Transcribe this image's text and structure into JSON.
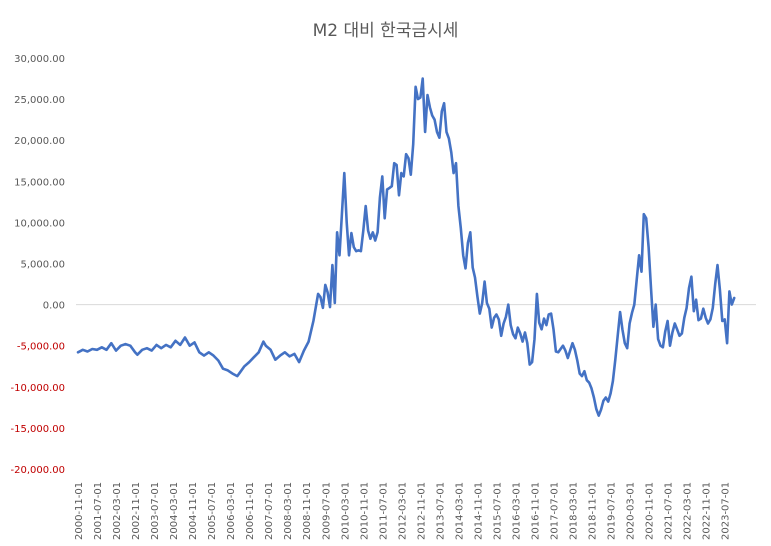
{
  "chart_data": {
    "type": "line",
    "title": "M2 대비 한국금시세",
    "xlabel": "",
    "ylabel": "",
    "ylim": [
      -20000,
      30000
    ],
    "y_ticks": [
      30000,
      25000,
      20000,
      15000,
      10000,
      5000,
      0,
      -5000,
      -10000,
      -15000,
      -20000
    ],
    "y_tick_labels": [
      "30,000.00",
      "25,000.00",
      "20,000.00",
      "15,000.00",
      "10,000.00",
      "5,000.00",
      "0.00",
      "-5,000.00",
      "-10,000.00",
      "-15,000.00",
      "-20,000.00"
    ],
    "negative_label_color": "#c00000",
    "positive_label_color": "#595959",
    "line_color": "#4472c4",
    "grid": false,
    "x_start": "2000-11",
    "x_tick_labels": [
      "2000-11-01",
      "2001-07-01",
      "2002-03-01",
      "2002-11-01",
      "2003-07-01",
      "2004-03-01",
      "2004-11-01",
      "2005-07-01",
      "2006-03-01",
      "2006-11-01",
      "2007-07-01",
      "2008-03-01",
      "2008-11-01",
      "2009-07-01",
      "2010-03-01",
      "2010-11-01",
      "2011-07-01",
      "2012-03-01",
      "2012-11-01",
      "2013-07-01",
      "2014-03-01",
      "2014-11-01",
      "2015-07-01",
      "2016-03-01",
      "2016-11-01",
      "2017-07-01",
      "2018-03-01",
      "2018-11-01",
      "2019-07-01",
      "2020-03-01",
      "2020-11-01",
      "2021-07-01",
      "2022-03-01",
      "2022-11-01",
      "2023-07-01"
    ],
    "series": [
      {
        "points": [
          [
            "2000-11",
            -5800
          ],
          [
            "2001-01",
            -5500
          ],
          [
            "2001-03",
            -5700
          ],
          [
            "2001-05",
            -5400
          ],
          [
            "2001-07",
            -5500
          ],
          [
            "2001-09",
            -5200
          ],
          [
            "2001-11",
            -5500
          ],
          [
            "2002-01",
            -4700
          ],
          [
            "2002-03",
            -5600
          ],
          [
            "2002-05",
            -5000
          ],
          [
            "2002-07",
            -4800
          ],
          [
            "2002-09",
            -5000
          ],
          [
            "2002-11",
            -5800
          ],
          [
            "2002-12",
            -6100
          ],
          [
            "2003-02",
            -5500
          ],
          [
            "2003-04",
            -5300
          ],
          [
            "2003-06",
            -5600
          ],
          [
            "2003-08",
            -4900
          ],
          [
            "2003-10",
            -5300
          ],
          [
            "2003-12",
            -4900
          ],
          [
            "2004-02",
            -5200
          ],
          [
            "2004-04",
            -4400
          ],
          [
            "2004-06",
            -4900
          ],
          [
            "2004-08",
            -4000
          ],
          [
            "2004-10",
            -5000
          ],
          [
            "2004-12",
            -4600
          ],
          [
            "2005-02",
            -5800
          ],
          [
            "2005-04",
            -6200
          ],
          [
            "2005-06",
            -5800
          ],
          [
            "2005-08",
            -6200
          ],
          [
            "2005-10",
            -6800
          ],
          [
            "2005-12",
            -7800
          ],
          [
            "2006-02",
            -8000
          ],
          [
            "2006-04",
            -8400
          ],
          [
            "2006-06",
            -8700
          ],
          [
            "2006-07",
            -8300
          ],
          [
            "2006-09",
            -7500
          ],
          [
            "2006-11",
            -7000
          ],
          [
            "2007-01",
            -6400
          ],
          [
            "2007-03",
            -5800
          ],
          [
            "2007-05",
            -4500
          ],
          [
            "2007-06",
            -5000
          ],
          [
            "2007-08",
            -5500
          ],
          [
            "2007-10",
            -6700
          ],
          [
            "2007-12",
            -6200
          ],
          [
            "2008-02",
            -5800
          ],
          [
            "2008-04",
            -6300
          ],
          [
            "2008-06",
            -6000
          ],
          [
            "2008-08",
            -7000
          ],
          [
            "2008-10",
            -5600
          ],
          [
            "2008-12",
            -4500
          ],
          [
            "2009-02",
            -2000
          ],
          [
            "2009-04",
            1300
          ],
          [
            "2009-05",
            900
          ],
          [
            "2009-06",
            -400
          ],
          [
            "2009-07",
            2400
          ],
          [
            "2009-08",
            1500
          ],
          [
            "2009-09",
            -300
          ],
          [
            "2009-10",
            4800
          ],
          [
            "2009-11",
            200
          ],
          [
            "2009-12",
            8800
          ],
          [
            "2010-01",
            6000
          ],
          [
            "2010-02",
            11000
          ],
          [
            "2010-03",
            16000
          ],
          [
            "2010-04",
            10000
          ],
          [
            "2010-05",
            6000
          ],
          [
            "2010-06",
            8700
          ],
          [
            "2010-07",
            7000
          ],
          [
            "2010-08",
            6500
          ],
          [
            "2010-09",
            6600
          ],
          [
            "2010-10",
            6500
          ],
          [
            "2010-11",
            9000
          ],
          [
            "2010-12",
            12000
          ],
          [
            "2011-01",
            9000
          ],
          [
            "2011-02",
            8000
          ],
          [
            "2011-03",
            8800
          ],
          [
            "2011-04",
            7800
          ],
          [
            "2011-05",
            8800
          ],
          [
            "2011-06",
            13000
          ],
          [
            "2011-07",
            15600
          ],
          [
            "2011-08",
            10500
          ],
          [
            "2011-09",
            14000
          ],
          [
            "2011-10",
            14200
          ],
          [
            "2011-11",
            14400
          ],
          [
            "2011-12",
            17200
          ],
          [
            "2012-01",
            17000
          ],
          [
            "2012-02",
            13300
          ],
          [
            "2012-03",
            16000
          ],
          [
            "2012-04",
            15600
          ],
          [
            "2012-05",
            18300
          ],
          [
            "2012-06",
            17800
          ],
          [
            "2012-07",
            15800
          ],
          [
            "2012-08",
            19500
          ],
          [
            "2012-09",
            26500
          ],
          [
            "2012-10",
            25000
          ],
          [
            "2012-11",
            25200
          ],
          [
            "2012-12",
            27500
          ],
          [
            "2013-01",
            21000
          ],
          [
            "2013-02",
            25500
          ],
          [
            "2013-03",
            24000
          ],
          [
            "2013-04",
            23000
          ],
          [
            "2013-05",
            22500
          ],
          [
            "2013-06",
            21000
          ],
          [
            "2013-07",
            20300
          ],
          [
            "2013-08",
            23500
          ],
          [
            "2013-09",
            24500
          ],
          [
            "2013-10",
            21000
          ],
          [
            "2013-11",
            20200
          ],
          [
            "2013-12",
            18500
          ],
          [
            "2014-01",
            16000
          ],
          [
            "2014-02",
            17200
          ],
          [
            "2014-03",
            12000
          ],
          [
            "2014-04",
            9300
          ],
          [
            "2014-05",
            6000
          ],
          [
            "2014-06",
            4400
          ],
          [
            "2014-07",
            7500
          ],
          [
            "2014-08",
            8800
          ],
          [
            "2014-09",
            4500
          ],
          [
            "2014-10",
            3300
          ],
          [
            "2014-11",
            1000
          ],
          [
            "2014-12",
            -1100
          ],
          [
            "2015-01",
            200
          ],
          [
            "2015-02",
            2800
          ],
          [
            "2015-03",
            200
          ],
          [
            "2015-04",
            -500
          ],
          [
            "2015-05",
            -2800
          ],
          [
            "2015-06",
            -1600
          ],
          [
            "2015-07",
            -1200
          ],
          [
            "2015-08",
            -1800
          ],
          [
            "2015-09",
            -3800
          ],
          [
            "2015-10",
            -2300
          ],
          [
            "2015-11",
            -1500
          ],
          [
            "2015-12",
            0
          ],
          [
            "2016-01",
            -2500
          ],
          [
            "2016-02",
            -3600
          ],
          [
            "2016-03",
            -4100
          ],
          [
            "2016-04",
            -2800
          ],
          [
            "2016-05",
            -3500
          ],
          [
            "2016-06",
            -4500
          ],
          [
            "2016-07",
            -3400
          ],
          [
            "2016-08",
            -4700
          ],
          [
            "2016-09",
            -7300
          ],
          [
            "2016-10",
            -7000
          ],
          [
            "2016-11",
            -4200
          ],
          [
            "2016-12",
            1300
          ],
          [
            "2017-01",
            -2200
          ],
          [
            "2017-02",
            -3000
          ],
          [
            "2017-03",
            -1700
          ],
          [
            "2017-04",
            -2500
          ],
          [
            "2017-05",
            -1200
          ],
          [
            "2017-06",
            -1100
          ],
          [
            "2017-07",
            -3000
          ],
          [
            "2017-08",
            -5700
          ],
          [
            "2017-09",
            -5800
          ],
          [
            "2017-10",
            -5400
          ],
          [
            "2017-11",
            -5000
          ],
          [
            "2017-12",
            -5600
          ],
          [
            "2018-01",
            -6500
          ],
          [
            "2018-02",
            -5600
          ],
          [
            "2018-03",
            -4700
          ],
          [
            "2018-04",
            -5500
          ],
          [
            "2018-05",
            -6800
          ],
          [
            "2018-06",
            -8400
          ],
          [
            "2018-07",
            -8700
          ],
          [
            "2018-08",
            -8100
          ],
          [
            "2018-09",
            -9200
          ],
          [
            "2018-10",
            -9500
          ],
          [
            "2018-11",
            -10200
          ],
          [
            "2018-12",
            -11300
          ],
          [
            "2019-01",
            -12700
          ],
          [
            "2019-02",
            -13500
          ],
          [
            "2019-03",
            -12800
          ],
          [
            "2019-04",
            -11700
          ],
          [
            "2019-05",
            -11300
          ],
          [
            "2019-06",
            -11800
          ],
          [
            "2019-07",
            -10800
          ],
          [
            "2019-08",
            -9300
          ],
          [
            "2019-09",
            -6700
          ],
          [
            "2019-10",
            -3800
          ],
          [
            "2019-11",
            -900
          ],
          [
            "2019-12",
            -3000
          ],
          [
            "2020-01",
            -4700
          ],
          [
            "2020-02",
            -5300
          ],
          [
            "2020-03",
            -2300
          ],
          [
            "2020-04",
            -1000
          ],
          [
            "2020-05",
            0
          ],
          [
            "2020-06",
            3000
          ],
          [
            "2020-07",
            6000
          ],
          [
            "2020-08",
            4000
          ],
          [
            "2020-09",
            11000
          ],
          [
            "2020-10",
            10500
          ],
          [
            "2020-11",
            7000
          ],
          [
            "2020-12",
            2000
          ],
          [
            "2021-01",
            -2700
          ],
          [
            "2021-02",
            0
          ],
          [
            "2021-03",
            -4200
          ],
          [
            "2021-04",
            -5000
          ],
          [
            "2021-05",
            -5200
          ],
          [
            "2021-06",
            -3300
          ],
          [
            "2021-07",
            -2000
          ],
          [
            "2021-08",
            -5000
          ],
          [
            "2021-09",
            -3400
          ],
          [
            "2021-10",
            -2300
          ],
          [
            "2021-11",
            -3000
          ],
          [
            "2021-12",
            -3800
          ],
          [
            "2022-01",
            -3500
          ],
          [
            "2022-02",
            -1600
          ],
          [
            "2022-03",
            -400
          ],
          [
            "2022-04",
            2000
          ],
          [
            "2022-05",
            3400
          ],
          [
            "2022-06",
            -800
          ],
          [
            "2022-07",
            600
          ],
          [
            "2022-08",
            -1900
          ],
          [
            "2022-09",
            -1700
          ],
          [
            "2022-10",
            -500
          ],
          [
            "2022-11",
            -1600
          ],
          [
            "2022-12",
            -2300
          ],
          [
            "2023-01",
            -1800
          ],
          [
            "2023-02",
            -400
          ],
          [
            "2023-03",
            2500
          ],
          [
            "2023-04",
            4800
          ],
          [
            "2023-05",
            1800
          ],
          [
            "2023-06",
            -2000
          ],
          [
            "2023-07",
            -1800
          ],
          [
            "2023-08",
            -4700
          ],
          [
            "2023-09",
            1600
          ],
          [
            "2023-10",
            0
          ],
          [
            "2023-11",
            800
          ]
        ]
      }
    ]
  }
}
